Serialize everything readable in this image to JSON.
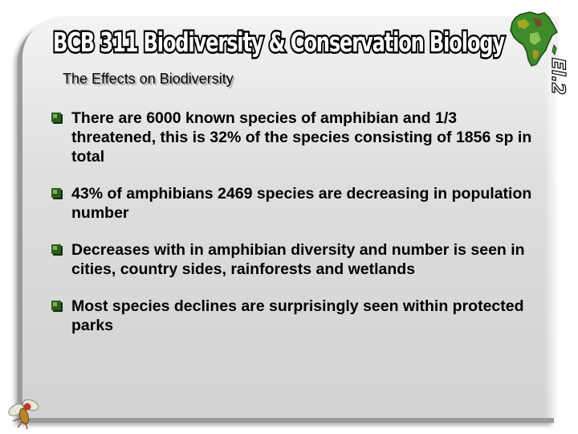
{
  "header": {
    "title": "BCB 311 Biodiversity & Conservation Biology",
    "slide_code": "El.2"
  },
  "main": {
    "subtitle": "The Effects on Biodiversity",
    "bullets": [
      {
        "text": "There are 6000 known species of amphibian and 1/3 threatened, this is 32% of the species consisting of 1856 sp in total"
      },
      {
        "text": "43% of amphibians 2469 species are decreasing in population number"
      },
      {
        "text": "Decreases with in amphibian diversity and number is seen in cities, country sides, rainforests and wetlands"
      },
      {
        "text": "Most species declines are surprisingly seen within protected parks"
      }
    ]
  },
  "icons": {
    "logo": "africa-map-icon",
    "bullet": "checkbox-bullet-icon",
    "corner": "fruit-fly-icon"
  },
  "colors": {
    "panel": "#d9d9d9",
    "bullet_marker": "#2b5d1c",
    "logo_green": "#3f8a2b"
  }
}
